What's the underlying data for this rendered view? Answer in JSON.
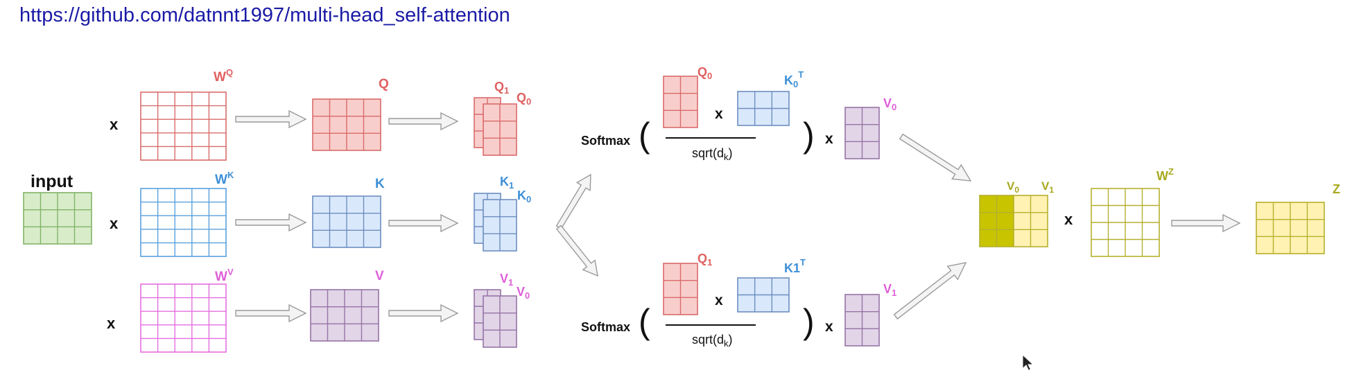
{
  "header": {
    "url_text": "https://github.com/datnnt1997/multi-head_self-attention"
  },
  "labels": {
    "input": "input",
    "times": "x",
    "softmax": "Softmax",
    "open_paren": "(",
    "close_paren": ")",
    "sqrt_main": "sqrt(d",
    "sqrt_sub": "k",
    "sqrt_close": ")"
  },
  "weights": {
    "wq": {
      "base": "W",
      "sup": "Q"
    },
    "wk": {
      "base": "W",
      "sup": "K"
    },
    "wv": {
      "base": "W",
      "sup": "V"
    },
    "wz": {
      "base": "W",
      "sup": "Z"
    }
  },
  "matrices": {
    "q": "Q",
    "k": "K",
    "v": "V",
    "z": "Z"
  },
  "heads": {
    "q1": {
      "base": "Q",
      "sub": "1"
    },
    "q0": {
      "base": "Q",
      "sub": "0"
    },
    "k1": {
      "base": "K",
      "sub": "1"
    },
    "k0": {
      "base": "K",
      "sub": "0"
    },
    "v1": {
      "base": "V",
      "sub": "1"
    },
    "v0": {
      "base": "V",
      "sub": "0"
    }
  },
  "attention_top": {
    "q": {
      "base": "Q",
      "sub": "0"
    },
    "k": {
      "base": "K",
      "sub": "0",
      "sup": "T"
    },
    "v": {
      "base": "V",
      "sub": "0"
    }
  },
  "attention_bottom": {
    "q": {
      "base": "Q",
      "sub": "1"
    },
    "k": {
      "base": "K1",
      "sup": "T"
    },
    "v": {
      "base": "V",
      "sub": "1"
    }
  },
  "concat": {
    "v0": {
      "base": "V",
      "sub": "0"
    },
    "v1": {
      "base": "V",
      "sub": "1"
    }
  },
  "colors": {
    "url": "#1a1aa6",
    "green_fill": "#d8ecc9",
    "green_stroke": "#82b366",
    "red_fill": "#f8cecc",
    "red_stroke": "#d96b6b",
    "red_label": "#e06060",
    "blue_fill": "#dae8fc",
    "blue_stroke": "#6c8ebf",
    "blue_line": "#5aa0dd",
    "blue_label": "#3d8fd6",
    "pink_stroke": "#e46ee0",
    "pink_label": "#de5fd8",
    "purple_fill": "#e1d5e7",
    "purple_stroke": "#9673a6",
    "yellow_fill": "#fff2b3",
    "yellow_stroke": "#b5b02e",
    "olive_fill": "#c8c400",
    "olive_label": "#a8a81e",
    "arrow_fill": "#f4f4f4",
    "arrow_stroke": "#9a9a9a"
  }
}
